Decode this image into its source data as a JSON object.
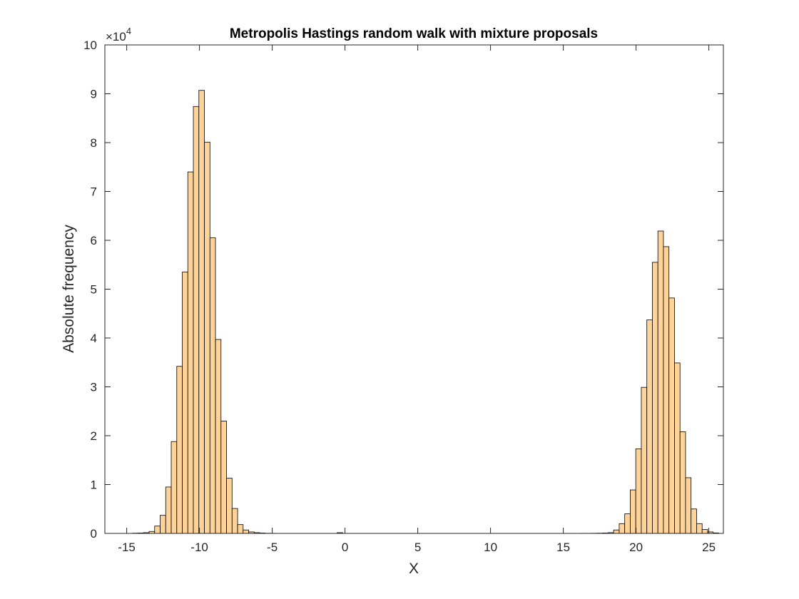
{
  "chart_data": {
    "type": "bar",
    "subtype": "histogram",
    "title": "Metropolis Hastings random walk with mixture proposals",
    "xlabel": "X",
    "ylabel": "Absolute frequency",
    "y_exponent_label": "×10",
    "y_exponent_power": "4",
    "y_scale_factor": 10000,
    "xlim": [
      -16.5,
      26
    ],
    "ylim": [
      0,
      100000
    ],
    "xticks": [
      -15,
      -10,
      -5,
      0,
      5,
      10,
      15,
      20,
      25
    ],
    "xtick_labels": [
      "-15",
      "-10",
      "-5",
      "0",
      "5",
      "10",
      "15",
      "20",
      "25"
    ],
    "yticks": [
      0,
      10000,
      20000,
      30000,
      40000,
      50000,
      60000,
      70000,
      80000,
      90000,
      100000
    ],
    "ytick_labels": [
      "0",
      "1",
      "2",
      "3",
      "4",
      "5",
      "6",
      "7",
      "8",
      "9",
      "10"
    ],
    "bin_width": 0.38,
    "bin_edges_start": -14.6,
    "counts": [
      50,
      80,
      150,
      400,
      1500,
      3700,
      9500,
      18800,
      34200,
      53500,
      74000,
      87400,
      90700,
      80100,
      60500,
      39700,
      23000,
      11300,
      5100,
      1800,
      700,
      300,
      150,
      80,
      30,
      20,
      10,
      10,
      10,
      10,
      10,
      10,
      10,
      10,
      10,
      10,
      10,
      150,
      10,
      10,
      10,
      10,
      10,
      10,
      10,
      10,
      10,
      10,
      10,
      10,
      10,
      10,
      10,
      10,
      10,
      10,
      10,
      10,
      10,
      10,
      10,
      10,
      10,
      10,
      10,
      10,
      10,
      10,
      10,
      10,
      10,
      10,
      10,
      10,
      10,
      10,
      10,
      10,
      10,
      10,
      10,
      20,
      20,
      30,
      50,
      80,
      150,
      700,
      2000,
      4000,
      8900,
      17300,
      29900,
      43700,
      55500,
      61900,
      58700,
      48200,
      34900,
      20800,
      11400,
      5000,
      2000,
      800,
      300,
      100
    ],
    "bar_color": "#fdd39a",
    "edge_color": "#000000",
    "grid": false,
    "box": true
  }
}
